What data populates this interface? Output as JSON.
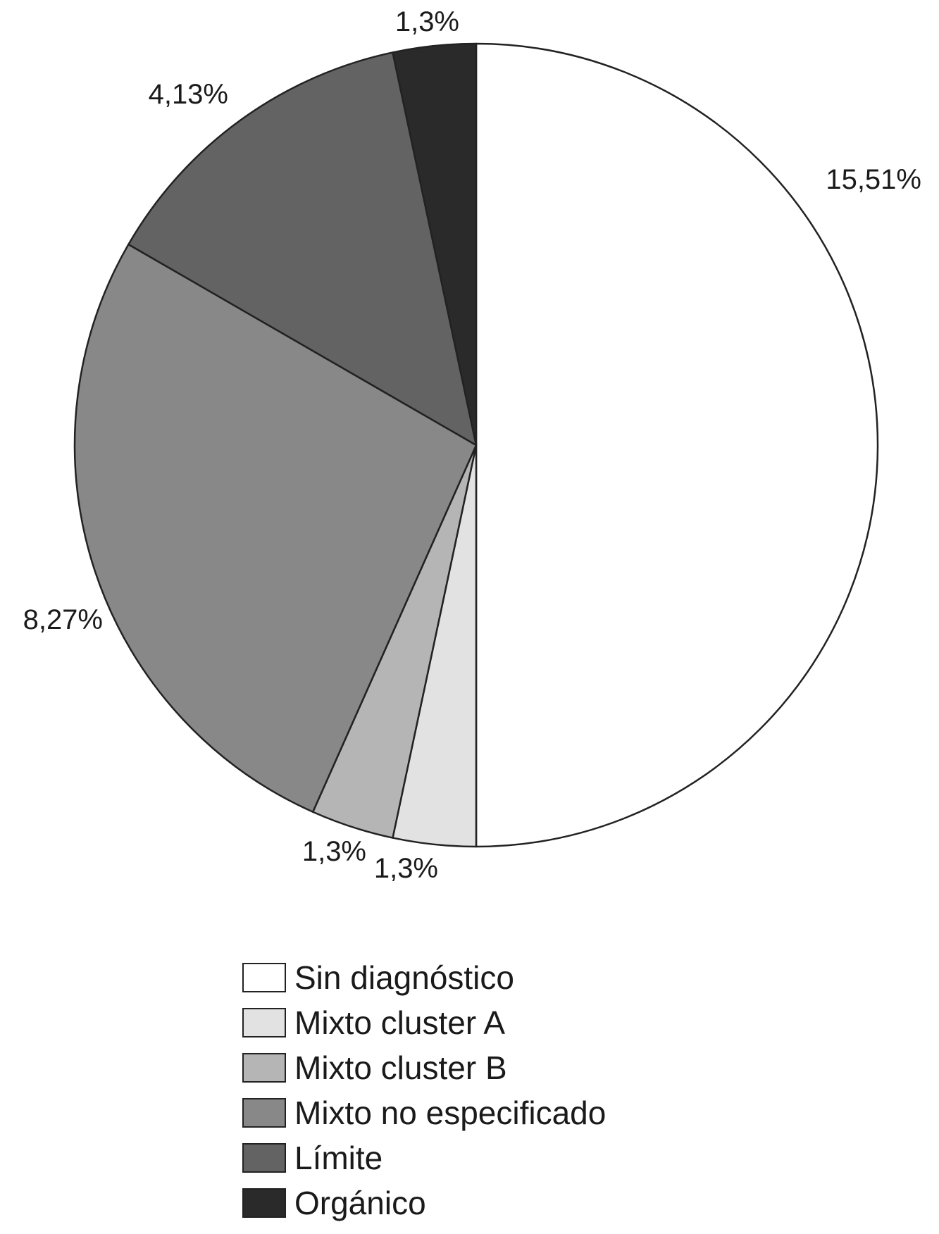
{
  "chart_data": {
    "type": "pie",
    "start_angle": "top",
    "direction": "clockwise",
    "legend_position": "bottom",
    "slices": [
      {
        "name": "Sin diagnóstico",
        "label": "15,51%",
        "count": 15,
        "percent": 51,
        "color": "#ffffff"
      },
      {
        "name": "Mixto cluster A",
        "label": "1,3%",
        "count": 1,
        "percent": 3,
        "color": "#e2e2e2"
      },
      {
        "name": "Mixto cluster B",
        "label": "1,3%",
        "count": 1,
        "percent": 3,
        "color": "#b5b5b5"
      },
      {
        "name": "Mixto no especificado",
        "label": "8,27%",
        "count": 8,
        "percent": 27,
        "color": "#888888"
      },
      {
        "name": "Límite",
        "label": "4,13%",
        "count": 4,
        "percent": 13,
        "color": "#636363"
      },
      {
        "name": "Orgánico",
        "label": "1,3%",
        "count": 1,
        "percent": 3,
        "color": "#2a2a2a"
      }
    ]
  }
}
